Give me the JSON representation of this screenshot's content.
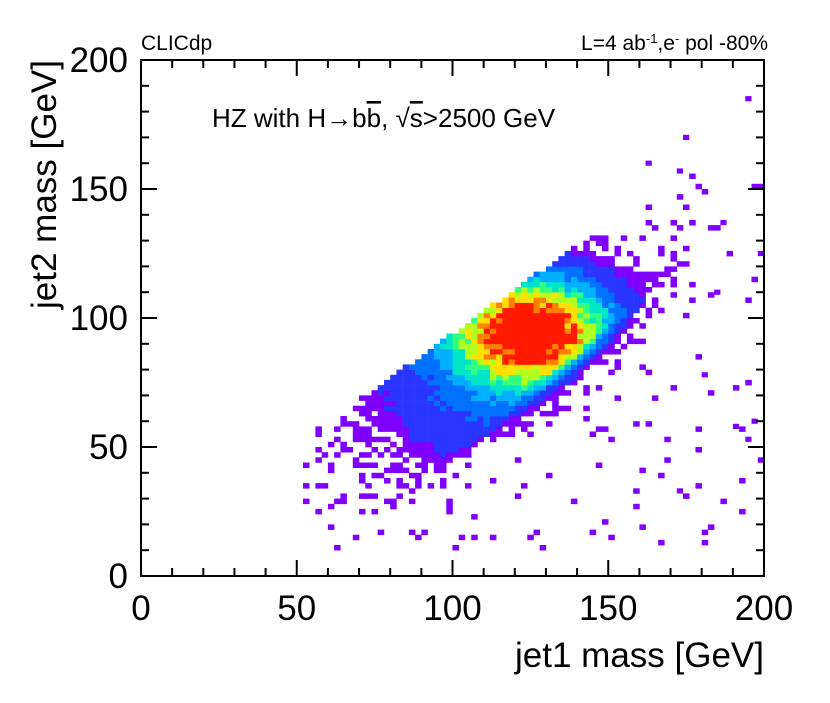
{
  "chart_data": {
    "type": "heatmap",
    "title": "",
    "annotation_left": "CLICdp",
    "annotation_right": {
      "prefix": "L=4 ab",
      "lumi_exp": "-1",
      "mid": ",e",
      "pol_exp": "-",
      "suffix": " pol -80%"
    },
    "process_label": {
      "pre": "HZ with H",
      "arrow": "→",
      "b": "b",
      "bbar": "b",
      "comma": ", ",
      "sqrt": "√",
      "s": "s",
      "post": ">2500 GeV"
    },
    "xlabel": "jet1 mass [GeV]",
    "ylabel": "jet2 mass [GeV]",
    "xlim": [
      0,
      200
    ],
    "ylim": [
      0,
      200
    ],
    "xticks": [
      0,
      50,
      100,
      150,
      200
    ],
    "yticks": [
      0,
      50,
      100,
      150,
      200
    ],
    "xtick_labels": [
      "0",
      "50",
      "100",
      "150",
      "200"
    ],
    "ytick_labels": [
      "0",
      "50",
      "100",
      "150",
      "200"
    ],
    "bin_width": 2,
    "peak": {
      "x": 125,
      "y": 95
    },
    "band": {
      "lower_edge_y_at_x100": 47,
      "upper_edge_slope": 0.86,
      "upper_edge_offset": 8
    },
    "colormap": [
      "#7f00ff",
      "#2a35ff",
      "#0070ff",
      "#00b0ff",
      "#00e5c8",
      "#30ff80",
      "#b0ff20",
      "#ffe000",
      "#ff8000",
      "#ff1a00"
    ],
    "outliers": [
      {
        "x": 195,
        "y": 185
      },
      {
        "x": 175,
        "y": 170
      },
      {
        "x": 163,
        "y": 160
      },
      {
        "x": 173,
        "y": 157
      },
      {
        "x": 199,
        "y": 125
      },
      {
        "x": 197,
        "y": 60
      },
      {
        "x": 191,
        "y": 58
      },
      {
        "x": 195,
        "y": 53
      },
      {
        "x": 173,
        "y": 33
      },
      {
        "x": 185,
        "y": 110
      },
      {
        "x": 187,
        "y": 137
      },
      {
        "x": 181,
        "y": 78
      }
    ]
  }
}
